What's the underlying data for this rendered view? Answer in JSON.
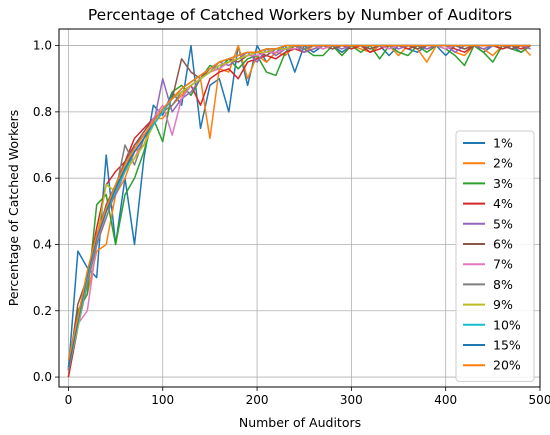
{
  "chart_data": {
    "type": "line",
    "title": "Percentage of Catched Workers by Number of Auditors",
    "xlabel": "Number of Auditors",
    "ylabel": "Percentage of Catched Workers",
    "xlim": [
      -10,
      500
    ],
    "ylim": [
      -0.03,
      1.05
    ],
    "xticks": [
      0,
      100,
      200,
      300,
      400,
      500
    ],
    "yticks": [
      0.0,
      0.2,
      0.4,
      0.6,
      0.8,
      1.0
    ],
    "xtick_labels": [
      "0",
      "100",
      "200",
      "300",
      "400",
      "500"
    ],
    "ytick_labels": [
      "0.0",
      "0.2",
      "0.4",
      "0.6",
      "0.8",
      "1.0"
    ],
    "grid": true,
    "legend_position": "right",
    "x": [
      0,
      10,
      20,
      30,
      40,
      50,
      60,
      70,
      80,
      90,
      100,
      110,
      120,
      130,
      140,
      150,
      160,
      170,
      180,
      190,
      200,
      210,
      220,
      230,
      240,
      250,
      260,
      270,
      280,
      290,
      300,
      310,
      320,
      330,
      340,
      350,
      360,
      370,
      380,
      390,
      400,
      410,
      420,
      430,
      440,
      450,
      460,
      470,
      480,
      490
    ],
    "series": [
      {
        "name": "1%",
        "color": "#1f77b4",
        "values": [
          0.02,
          0.38,
          0.33,
          0.3,
          0.67,
          0.4,
          0.6,
          0.4,
          0.66,
          0.82,
          0.79,
          0.86,
          0.82,
          1.0,
          0.75,
          0.88,
          0.9,
          0.8,
          1.0,
          0.88,
          1.0,
          0.95,
          0.98,
          1.0,
          0.92,
          1.0,
          0.98,
          1.0,
          1.0,
          0.98,
          1.0,
          1.0,
          0.98,
          1.0,
          0.97,
          1.0,
          0.99,
          0.98,
          1.0,
          1.0,
          0.97,
          1.0,
          0.99,
          1.0,
          0.98,
          1.0,
          0.99,
          1.0,
          0.98,
          1.0
        ]
      },
      {
        "name": "2%",
        "color": "#ff7f0e",
        "values": [
          0.02,
          0.2,
          0.25,
          0.38,
          0.4,
          0.55,
          0.6,
          0.68,
          0.7,
          0.78,
          0.78,
          0.82,
          0.85,
          0.88,
          0.9,
          0.72,
          0.93,
          0.92,
          1.0,
          0.9,
          0.97,
          0.95,
          0.98,
          0.97,
          1.0,
          0.98,
          1.0,
          0.99,
          1.0,
          0.97,
          1.0,
          0.99,
          0.98,
          1.0,
          1.0,
          0.97,
          1.0,
          0.99,
          0.95,
          1.0,
          1.0,
          0.98,
          0.97,
          1.0,
          0.99,
          0.97,
          1.0,
          0.99,
          1.0,
          0.97
        ]
      },
      {
        "name": "3%",
        "color": "#2ca02c",
        "values": [
          0.0,
          0.2,
          0.25,
          0.52,
          0.55,
          0.4,
          0.55,
          0.6,
          0.68,
          0.78,
          0.71,
          0.86,
          0.88,
          0.85,
          0.9,
          0.94,
          0.93,
          0.96,
          0.93,
          0.96,
          0.97,
          0.92,
          0.91,
          0.98,
          1.0,
          0.99,
          0.97,
          0.97,
          1.0,
          0.97,
          1.0,
          0.98,
          1.0,
          0.96,
          1.0,
          0.98,
          0.97,
          1.0,
          0.98,
          1.0,
          0.99,
          0.97,
          0.94,
          1.0,
          0.98,
          0.95,
          1.0,
          0.99,
          0.98,
          1.0
        ]
      },
      {
        "name": "4%",
        "color": "#d62728",
        "values": [
          0.0,
          0.15,
          0.3,
          0.45,
          0.58,
          0.62,
          0.65,
          0.72,
          0.75,
          0.78,
          0.8,
          0.84,
          0.86,
          0.88,
          0.82,
          0.9,
          0.92,
          0.93,
          0.9,
          0.95,
          0.96,
          0.97,
          0.96,
          0.98,
          0.99,
          0.98,
          0.99,
          1.0,
          0.99,
          1.0,
          0.99,
          1.0,
          0.98,
          0.99,
          1.0,
          1.0,
          0.99,
          1.0,
          0.99,
          1.0,
          1.0,
          0.99,
          0.98,
          1.0,
          0.99,
          1.0,
          0.99,
          1.0,
          0.99,
          1.0
        ]
      },
      {
        "name": "5%",
        "color": "#9467bd",
        "values": [
          0.03,
          0.18,
          0.3,
          0.4,
          0.5,
          0.55,
          0.62,
          0.7,
          0.73,
          0.76,
          0.9,
          0.8,
          0.84,
          0.86,
          0.9,
          0.92,
          0.95,
          0.94,
          0.96,
          0.98,
          0.95,
          0.99,
          0.97,
          0.99,
          1.0,
          0.98,
          0.99,
          1.0,
          1.0,
          0.99,
          1.0,
          1.0,
          0.99,
          1.0,
          1.0,
          0.99,
          1.0,
          1.0,
          0.99,
          1.0,
          1.0,
          0.98,
          1.0,
          1.0,
          0.99,
          1.0,
          1.0,
          0.99,
          1.0,
          0.99
        ]
      },
      {
        "name": "6%",
        "color": "#8c564b",
        "values": [
          0.02,
          0.22,
          0.3,
          0.42,
          0.52,
          0.58,
          0.65,
          0.7,
          0.74,
          0.78,
          0.8,
          0.84,
          0.96,
          0.92,
          0.9,
          0.93,
          0.95,
          0.96,
          0.95,
          0.97,
          0.98,
          0.97,
          0.99,
          0.99,
          1.0,
          0.99,
          1.0,
          1.0,
          0.99,
          1.0,
          1.0,
          1.0,
          0.99,
          1.0,
          1.0,
          1.0,
          1.0,
          0.99,
          1.0,
          1.0,
          1.0,
          1.0,
          0.99,
          1.0,
          1.0,
          1.0,
          1.0,
          0.99,
          1.0,
          1.0
        ]
      },
      {
        "name": "7%",
        "color": "#e377c2",
        "values": [
          0.02,
          0.16,
          0.2,
          0.4,
          0.5,
          0.58,
          0.62,
          0.66,
          0.72,
          0.78,
          0.82,
          0.73,
          0.84,
          0.88,
          0.9,
          0.92,
          0.93,
          0.95,
          0.96,
          0.97,
          0.97,
          0.98,
          0.98,
          0.99,
          0.99,
          1.0,
          1.0,
          0.99,
          1.0,
          1.0,
          1.0,
          1.0,
          1.0,
          1.0,
          0.99,
          1.0,
          1.0,
          1.0,
          1.0,
          1.0,
          0.99,
          1.0,
          1.0,
          1.0,
          1.0,
          1.0,
          1.0,
          1.0,
          1.0,
          1.0
        ]
      },
      {
        "name": "8%",
        "color": "#7f7f7f",
        "values": [
          0.02,
          0.15,
          0.28,
          0.4,
          0.48,
          0.56,
          0.7,
          0.64,
          0.72,
          0.76,
          0.8,
          0.82,
          0.86,
          0.88,
          0.9,
          0.92,
          0.94,
          0.95,
          0.96,
          0.97,
          0.98,
          0.98,
          0.99,
          0.99,
          1.0,
          0.99,
          1.0,
          1.0,
          1.0,
          1.0,
          1.0,
          1.0,
          1.0,
          1.0,
          1.0,
          1.0,
          1.0,
          1.0,
          1.0,
          1.0,
          1.0,
          1.0,
          1.0,
          1.0,
          1.0,
          1.0,
          1.0,
          1.0,
          1.0,
          1.0
        ]
      },
      {
        "name": "9%",
        "color": "#bcbd22",
        "values": [
          0.03,
          0.15,
          0.3,
          0.42,
          0.58,
          0.56,
          0.62,
          0.66,
          0.7,
          0.76,
          0.8,
          0.84,
          0.86,
          0.88,
          0.9,
          0.92,
          0.94,
          0.95,
          0.96,
          0.97,
          0.98,
          0.98,
          0.99,
          0.99,
          1.0,
          1.0,
          1.0,
          1.0,
          1.0,
          1.0,
          1.0,
          1.0,
          1.0,
          1.0,
          1.0,
          1.0,
          1.0,
          1.0,
          1.0,
          1.0,
          1.0,
          1.0,
          1.0,
          1.0,
          1.0,
          1.0,
          1.0,
          1.0,
          1.0,
          1.0
        ]
      },
      {
        "name": "10%",
        "color": "#17becf",
        "values": [
          0.03,
          0.16,
          0.3,
          0.42,
          0.5,
          0.56,
          0.62,
          0.68,
          0.72,
          0.76,
          0.8,
          0.84,
          0.87,
          0.89,
          0.91,
          0.93,
          0.95,
          0.96,
          0.97,
          0.98,
          0.98,
          0.99,
          0.99,
          1.0,
          1.0,
          1.0,
          1.0,
          1.0,
          1.0,
          1.0,
          1.0,
          1.0,
          1.0,
          1.0,
          1.0,
          1.0,
          1.0,
          1.0,
          1.0,
          1.0,
          1.0,
          1.0,
          1.0,
          1.0,
          1.0,
          1.0,
          1.0,
          1.0,
          1.0,
          1.0
        ]
      },
      {
        "name": "15%",
        "color": "#1f77b4",
        "values": [
          0.03,
          0.17,
          0.31,
          0.42,
          0.5,
          0.57,
          0.63,
          0.68,
          0.72,
          0.77,
          0.81,
          0.84,
          0.87,
          0.89,
          0.91,
          0.93,
          0.95,
          0.96,
          0.97,
          0.98,
          0.98,
          0.99,
          0.99,
          1.0,
          1.0,
          1.0,
          1.0,
          1.0,
          1.0,
          1.0,
          1.0,
          1.0,
          1.0,
          1.0,
          1.0,
          1.0,
          1.0,
          1.0,
          1.0,
          1.0,
          1.0,
          1.0,
          1.0,
          1.0,
          1.0,
          1.0,
          1.0,
          1.0,
          1.0,
          1.0
        ]
      },
      {
        "name": "20%",
        "color": "#ff7f0e",
        "values": [
          0.05,
          0.18,
          0.32,
          0.43,
          0.51,
          0.58,
          0.64,
          0.69,
          0.73,
          0.77,
          0.81,
          0.84,
          0.87,
          0.89,
          0.91,
          0.93,
          0.95,
          0.96,
          0.97,
          0.98,
          0.98,
          0.99,
          0.99,
          1.0,
          1.0,
          1.0,
          1.0,
          1.0,
          1.0,
          1.0,
          1.0,
          1.0,
          1.0,
          1.0,
          1.0,
          1.0,
          1.0,
          1.0,
          1.0,
          1.0,
          1.0,
          1.0,
          1.0,
          1.0,
          1.0,
          1.0,
          1.0,
          1.0,
          1.0,
          1.0
        ]
      }
    ]
  }
}
